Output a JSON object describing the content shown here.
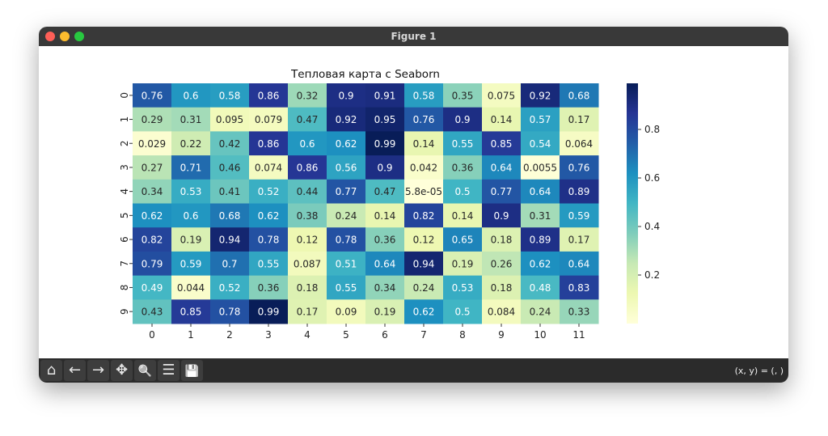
{
  "window": {
    "title": "Figure 1",
    "coords_readout": "(x, y) = (, )"
  },
  "toolbar": [
    {
      "name": "home-icon",
      "glyph": "⌂"
    },
    {
      "name": "back-arrow-icon",
      "glyph": "←"
    },
    {
      "name": "forward-arrow-icon",
      "glyph": "→"
    },
    {
      "name": "pan-icon",
      "glyph": "✥"
    },
    {
      "name": "zoom-icon",
      "glyph": "🔍"
    },
    {
      "name": "configure-subplots-icon",
      "glyph": "☰"
    },
    {
      "name": "save-icon",
      "glyph": "💾"
    }
  ],
  "chart_data": {
    "type": "heatmap",
    "title": "Тепловая карта с Seaborn",
    "colormap": "YlGnBu",
    "colormap_stops": [
      "#ffffd9",
      "#edf8b1",
      "#c7e9b4",
      "#7fcdbb",
      "#41b6c4",
      "#1d91c0",
      "#225ea8",
      "#253494",
      "#081d58"
    ],
    "x_tick_labels": [
      "0",
      "1",
      "2",
      "3",
      "4",
      "5",
      "6",
      "7",
      "8",
      "9",
      "10",
      "11"
    ],
    "y_tick_labels": [
      "0",
      "1",
      "2",
      "3",
      "4",
      "5",
      "6",
      "7",
      "8",
      "9"
    ],
    "values": [
      [
        "0.76",
        "0.6",
        "0.58",
        "0.86",
        "0.32",
        "0.9",
        "0.91",
        "0.58",
        "0.35",
        "0.075",
        "0.92",
        "0.68"
      ],
      [
        "0.29",
        "0.31",
        "0.095",
        "0.079",
        "0.47",
        "0.92",
        "0.95",
        "0.76",
        "0.9",
        "0.14",
        "0.57",
        "0.17"
      ],
      [
        "0.029",
        "0.22",
        "0.42",
        "0.86",
        "0.6",
        "0.62",
        "0.99",
        "0.14",
        "0.55",
        "0.85",
        "0.54",
        "0.064"
      ],
      [
        "0.27",
        "0.71",
        "0.46",
        "0.074",
        "0.86",
        "0.56",
        "0.9",
        "0.042",
        "0.36",
        "0.64",
        "0.0055",
        "0.76"
      ],
      [
        "0.34",
        "0.53",
        "0.41",
        "0.52",
        "0.44",
        "0.77",
        "0.47",
        "5.8e-05",
        "0.5",
        "0.77",
        "0.64",
        "0.89"
      ],
      [
        "0.62",
        "0.6",
        "0.68",
        "0.62",
        "0.38",
        "0.24",
        "0.14",
        "0.82",
        "0.14",
        "0.9",
        "0.31",
        "0.59"
      ],
      [
        "0.82",
        "0.19",
        "0.94",
        "0.78",
        "0.12",
        "0.78",
        "0.36",
        "0.12",
        "0.65",
        "0.18",
        "0.89",
        "0.17"
      ],
      [
        "0.79",
        "0.59",
        "0.7",
        "0.55",
        "0.087",
        "0.51",
        "0.64",
        "0.94",
        "0.19",
        "0.26",
        "0.62",
        "0.64"
      ],
      [
        "0.49",
        "0.044",
        "0.52",
        "0.36",
        "0.18",
        "0.55",
        "0.34",
        "0.24",
        "0.53",
        "0.18",
        "0.48",
        "0.83"
      ],
      [
        "0.43",
        "0.85",
        "0.78",
        "0.99",
        "0.17",
        "0.09",
        "0.19",
        "0.62",
        "0.5",
        "0.084",
        "0.24",
        "0.33"
      ]
    ],
    "colorbar": {
      "range": [
        0.0,
        0.99
      ],
      "ticks": [
        "0.2",
        "0.4",
        "0.6",
        "0.8"
      ]
    }
  }
}
